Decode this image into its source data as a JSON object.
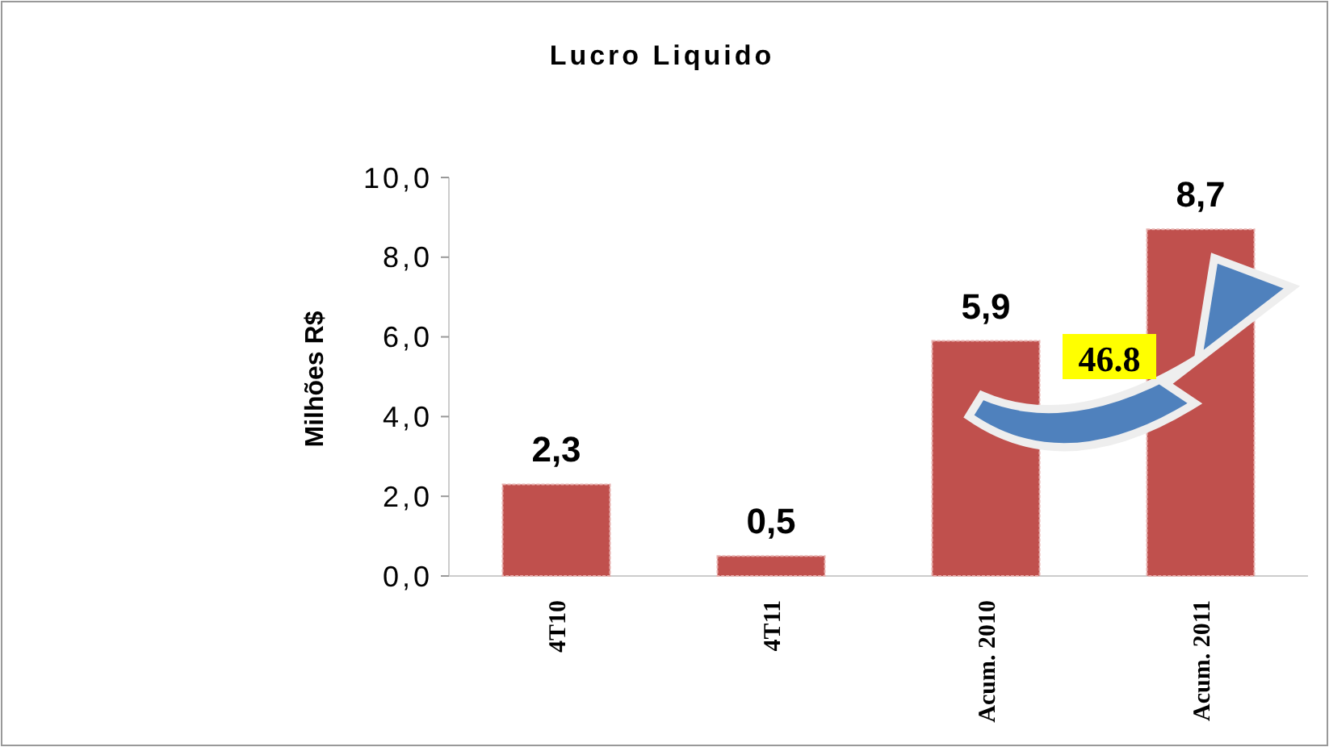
{
  "chart_data": {
    "type": "bar",
    "title": "Lucro Liquido",
    "ylabel": "Milhões R$",
    "categories": [
      "4T10",
      "4T11",
      "Acum. 2010",
      "Acum. 2011"
    ],
    "values": [
      2.3,
      0.5,
      5.9,
      8.7
    ],
    "color": "#c0504d",
    "value_labels": [
      "2,3",
      "0,5",
      "5,9",
      "8,7"
    ],
    "ylim": [
      0,
      10
    ],
    "yticks": [
      {
        "value": 0,
        "label": "0,0"
      },
      {
        "value": 2,
        "label": "2,0"
      },
      {
        "value": 4,
        "label": "4,0"
      },
      {
        "value": 6,
        "label": "6,0"
      },
      {
        "value": 8,
        "label": "8,0"
      },
      {
        "value": 10,
        "label": "10,0"
      }
    ],
    "annotations": [
      "46.8"
    ]
  }
}
